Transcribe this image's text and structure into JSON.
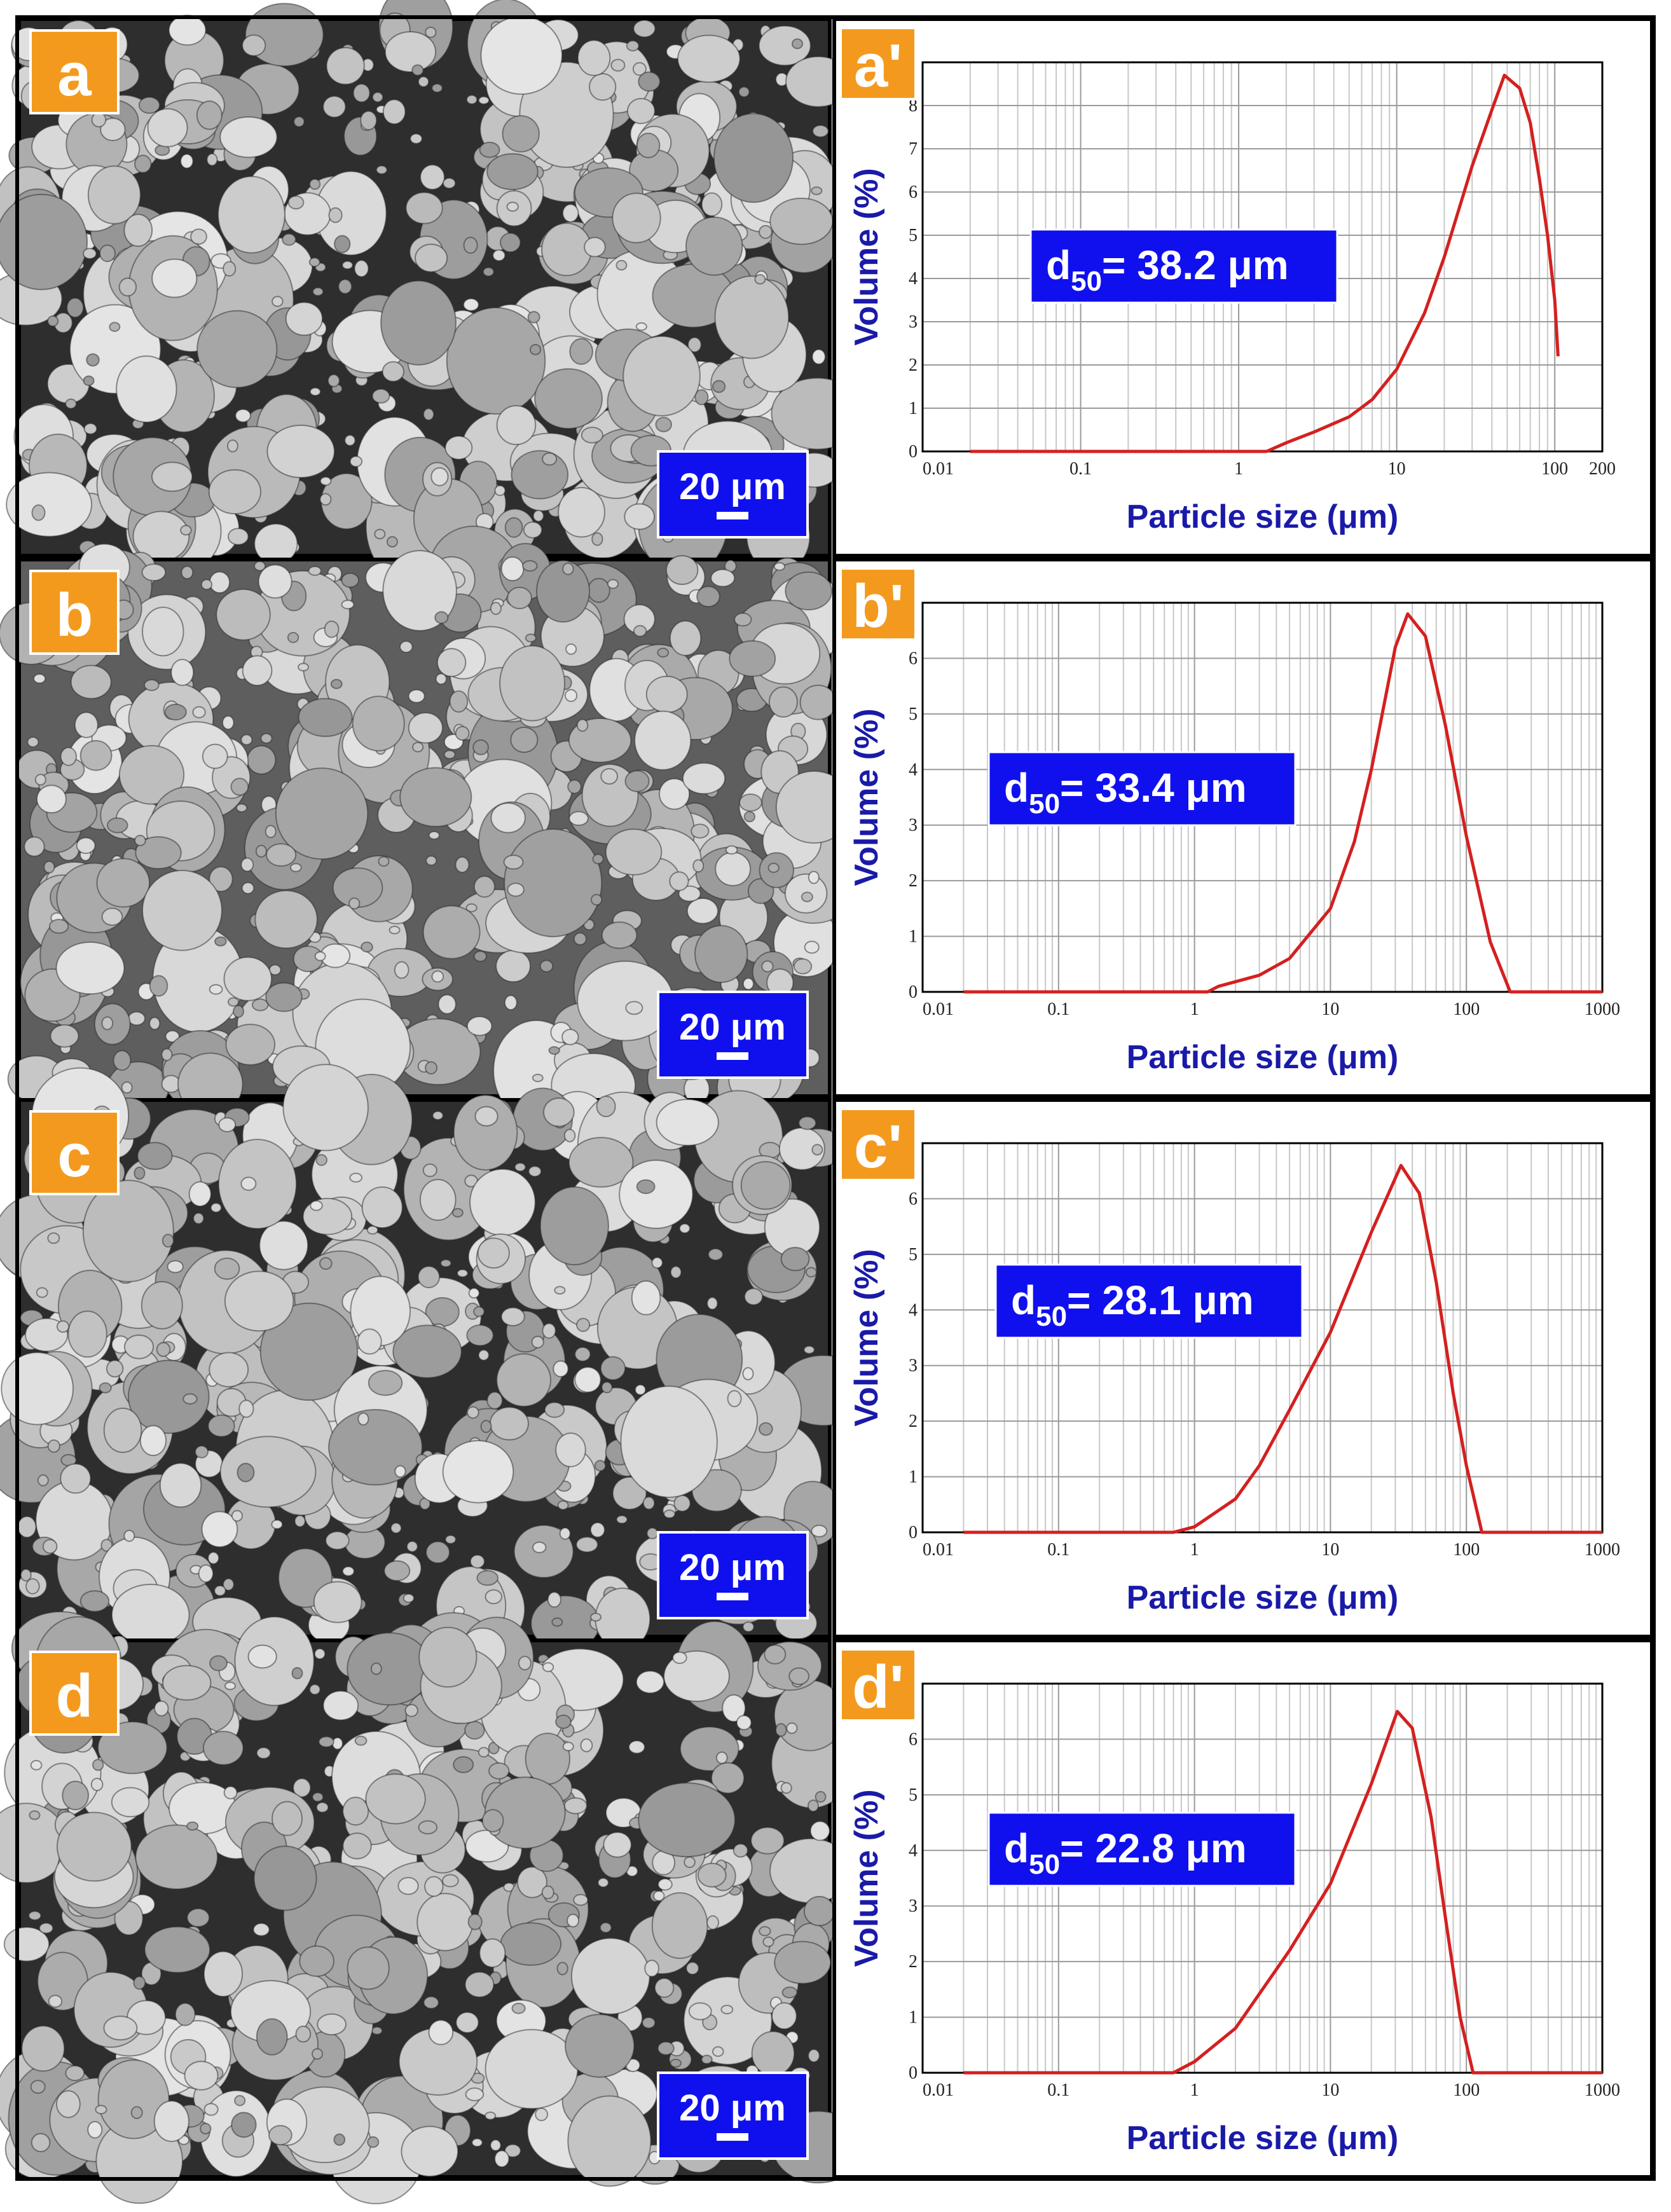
{
  "figure": {
    "images": [
      {
        "label": "a",
        "scale_bar": "20 μm"
      },
      {
        "label": "b",
        "scale_bar": "20 μm"
      },
      {
        "label": "c",
        "scale_bar": "20 μm"
      },
      {
        "label": "d",
        "scale_bar": "20 μm"
      }
    ]
  },
  "chart_data": [
    {
      "type": "line",
      "panel_label": "a'",
      "x_label": "Particle size (μm)",
      "y_label": "Volume (%)",
      "annotation": {
        "symbol": "d",
        "subscript": "50",
        "text": "= 38.2 μm"
      },
      "log_x": true,
      "grid": true,
      "xlim": [
        0.01,
        200
      ],
      "ylim": [
        0,
        9
      ],
      "xticks": [
        0.01,
        0.1,
        1,
        10,
        100,
        200
      ],
      "yticks": [
        0,
        1,
        2,
        3,
        4,
        5,
        6,
        7,
        8
      ],
      "x": [
        0.02,
        1.5,
        2,
        3,
        5,
        7,
        10,
        15,
        20,
        30,
        40,
        48,
        60,
        70,
        80,
        90,
        100,
        105
      ],
      "series": [
        {
          "color": "#d42020",
          "values": [
            0,
            0,
            0.2,
            0.45,
            0.8,
            1.2,
            1.9,
            3.2,
            4.5,
            6.6,
            7.9,
            8.7,
            8.4,
            7.6,
            6.3,
            5,
            3.5,
            2.2
          ]
        }
      ]
    },
    {
      "type": "line",
      "panel_label": "b'",
      "x_label": "Particle size (μm)",
      "y_label": "Volume (%)",
      "annotation": {
        "symbol": "d",
        "subscript": "50",
        "text": "= 33.4 μm"
      },
      "log_x": true,
      "grid": true,
      "xlim": [
        0.01,
        1000
      ],
      "ylim": [
        0,
        7
      ],
      "xticks": [
        0.01,
        0.1,
        1,
        10,
        100,
        1000
      ],
      "yticks": [
        0,
        1,
        2,
        3,
        4,
        5,
        6
      ],
      "x": [
        0.02,
        1.25,
        1.5,
        3,
        5,
        10,
        15,
        20,
        30,
        37,
        50,
        70,
        100,
        150,
        210,
        1000
      ],
      "series": [
        {
          "color": "#d42020",
          "values": [
            0,
            0,
            0.1,
            0.3,
            0.6,
            1.5,
            2.7,
            4,
            6.2,
            6.8,
            6.4,
            4.8,
            2.8,
            0.9,
            0,
            0
          ]
        }
      ]
    },
    {
      "type": "line",
      "panel_label": "c'",
      "x_label": "Particle size (μm)",
      "y_label": "Volume (%)",
      "annotation": {
        "symbol": "d",
        "subscript": "50",
        "text": "= 28.1 μm"
      },
      "log_x": true,
      "grid": true,
      "xlim": [
        0.01,
        1000
      ],
      "ylim": [
        0,
        7
      ],
      "xticks": [
        0.01,
        0.1,
        1,
        10,
        100,
        1000
      ],
      "yticks": [
        0,
        1,
        2,
        3,
        4,
        5,
        6
      ],
      "x": [
        0.02,
        0.7,
        1,
        2,
        3,
        5,
        10,
        20,
        33,
        45,
        60,
        80,
        100,
        130,
        1000
      ],
      "series": [
        {
          "color": "#d42020",
          "values": [
            0,
            0,
            0.1,
            0.6,
            1.2,
            2.2,
            3.6,
            5.4,
            6.6,
            6.1,
            4.5,
            2.5,
            1.2,
            0,
            0
          ]
        }
      ]
    },
    {
      "type": "line",
      "panel_label": "d'",
      "x_label": "Particle size (μm)",
      "y_label": "Volume (%)",
      "annotation": {
        "symbol": "d",
        "subscript": "50",
        "text": "= 22.8 μm"
      },
      "log_x": true,
      "grid": true,
      "xlim": [
        0.01,
        1000
      ],
      "ylim": [
        0,
        7
      ],
      "xticks": [
        0.01,
        0.1,
        1,
        10,
        100,
        1000
      ],
      "yticks": [
        0,
        1,
        2,
        3,
        4,
        5,
        6
      ],
      "x": [
        0.02,
        0.7,
        1,
        2,
        5,
        10,
        20,
        31,
        40,
        55,
        70,
        90,
        112,
        1000
      ],
      "series": [
        {
          "color": "#d42020",
          "values": [
            0,
            0,
            0.2,
            0.8,
            2.2,
            3.4,
            5.2,
            6.5,
            6.2,
            4.6,
            2.8,
            1,
            0,
            0
          ]
        }
      ]
    }
  ]
}
